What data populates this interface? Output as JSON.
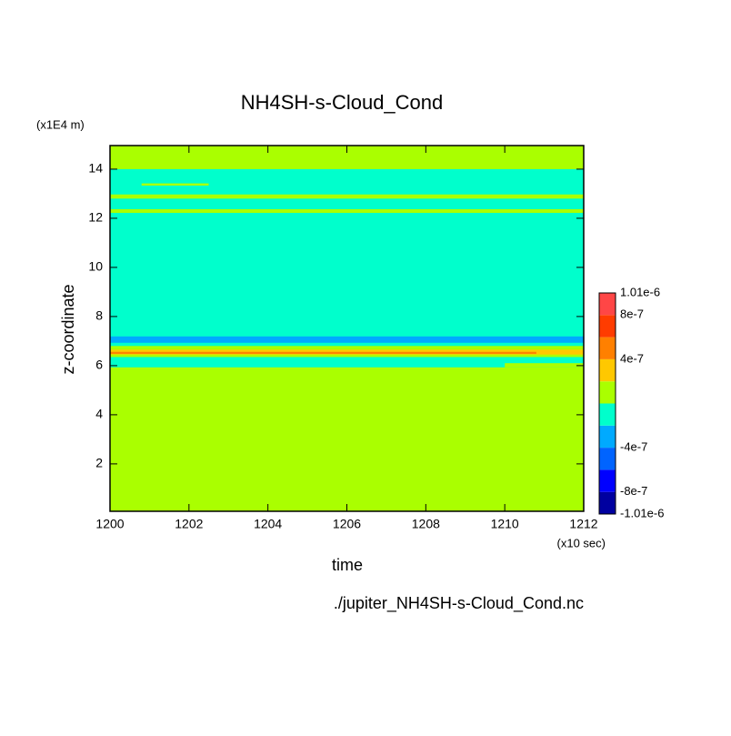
{
  "chart_data": {
    "type": "contour",
    "title": "NH4SH-s-Cloud_Cond",
    "x_label": "time",
    "x_unit": "(x10 sec)",
    "y_label": "z-coordinate",
    "y_unit": "(x1E4 m)",
    "file_label": "./jupiter_NH4SH-s-Cloud_Cond.nc",
    "xlim": [
      1200,
      1212
    ],
    "xticks": [
      1200,
      1202,
      1204,
      1206,
      1208,
      1210,
      1212
    ],
    "ylim": [
      0.07,
      14.96
    ],
    "yticks": [
      2,
      4,
      6,
      8,
      10,
      12,
      14
    ],
    "levels": [
      {
        "value": -1.01e-06,
        "label": "-1.01e-6"
      },
      {
        "value": -8e-07,
        "label": "-8e-7"
      },
      -6e-07,
      {
        "value": -4e-07,
        "label": "-4e-7"
      },
      -2e-07,
      0,
      2e-07,
      {
        "value": 4e-07,
        "label": "4e-7"
      },
      6e-07,
      {
        "value": 8e-07,
        "label": "8e-7"
      },
      {
        "value": 1.01e-06,
        "label": "1.01e-6"
      }
    ],
    "colors": [
      "#0000a0",
      "#0000ff",
      "#0064ff",
      "#00aaff",
      "#00ffcc",
      "#aaff00",
      "#ffc800",
      "#ff8000",
      "#ff3c00",
      "#ff4646"
    ],
    "background_value": 1e-07,
    "patches": [
      {
        "x": [
          1200,
          1212
        ],
        "z": [
          5.93,
          14.0
        ],
        "value": -1e-07
      },
      {
        "x": [
          1200.8,
          1202.5
        ],
        "z": [
          13.33,
          13.42
        ],
        "value": 1e-07
      },
      {
        "x": [
          1200,
          1212
        ],
        "z": [
          12.8,
          12.97
        ],
        "value": 1e-07
      },
      {
        "x": [
          1200,
          1212
        ],
        "z": [
          12.22,
          12.37
        ],
        "value": 1e-07
      },
      {
        "x": [
          1200,
          1212
        ],
        "z": [
          6.93,
          7.19
        ],
        "value": -3e-07
      },
      {
        "x": [
          1200,
          1212
        ],
        "z": [
          6.35,
          6.8
        ],
        "value": 1e-07
      },
      {
        "x": [
          1200,
          1212
        ],
        "z": [
          6.45,
          6.65
        ],
        "value": 3e-07
      },
      {
        "x": [
          1200,
          1210.8
        ],
        "z": [
          6.48,
          6.56
        ],
        "value": 5e-07
      },
      {
        "x": [
          1210,
          1212
        ],
        "z": [
          5.93,
          6.1
        ],
        "value": 1e-07
      }
    ]
  }
}
